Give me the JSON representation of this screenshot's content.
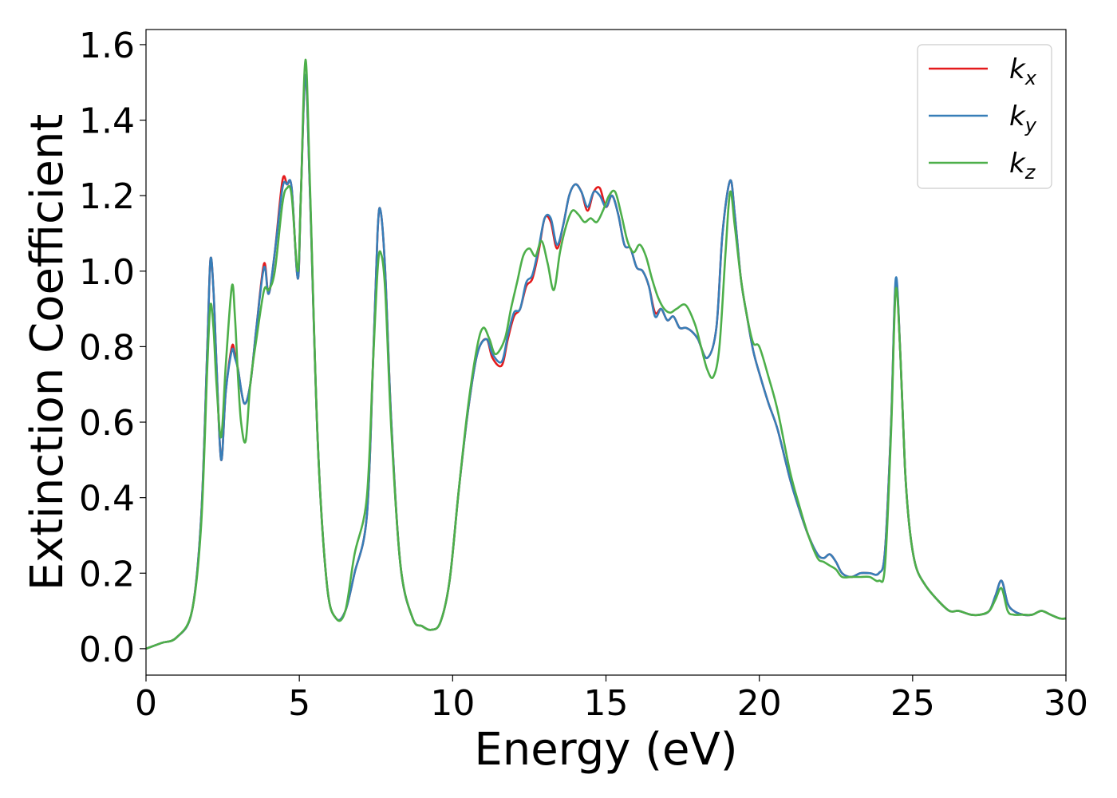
{
  "chart_data": {
    "type": "line",
    "xlabel": "Energy (eV)",
    "ylabel": "Extinction Coefficient",
    "xlim": [
      0,
      30
    ],
    "ylim": [
      -0.07,
      1.64
    ],
    "xticks": [
      0,
      5,
      10,
      15,
      20,
      25,
      30
    ],
    "xtick_labels": [
      "0",
      "5",
      "10",
      "15",
      "20",
      "25",
      "30"
    ],
    "yticks": [
      0.0,
      0.2,
      0.4,
      0.6,
      0.8,
      1.0,
      1.2,
      1.4,
      1.6
    ],
    "ytick_labels": [
      "0.0",
      "0.2",
      "0.4",
      "0.6",
      "0.8",
      "1.0",
      "1.2",
      "1.4",
      "1.6"
    ],
    "grid": false,
    "legend_position": "top-right",
    "series": [
      {
        "name": "k",
        "subscript": "x",
        "color": "#e41a1c",
        "x": [
          0,
          0.5,
          1.0,
          1.5,
          1.8,
          2.0,
          2.1,
          2.2,
          2.3,
          2.45,
          2.6,
          2.8,
          2.9,
          3.0,
          3.2,
          3.4,
          3.6,
          3.85,
          4.0,
          4.2,
          4.45,
          4.6,
          4.75,
          4.95,
          5.05,
          5.2,
          5.35,
          5.6,
          5.9,
          6.2,
          6.5,
          6.8,
          7.2,
          7.4,
          7.55,
          7.65,
          7.8,
          8.0,
          8.3,
          8.7,
          9.0,
          9.3,
          9.6,
          9.9,
          10.2,
          10.5,
          10.8,
          11.1,
          11.3,
          11.6,
          11.8,
          12.0,
          12.2,
          12.4,
          12.6,
          12.8,
          13.0,
          13.2,
          13.4,
          13.6,
          13.8,
          14.0,
          14.2,
          14.4,
          14.6,
          14.8,
          15.0,
          15.2,
          15.4,
          15.6,
          15.8,
          16.0,
          16.2,
          16.4,
          16.6,
          16.8,
          17.0,
          17.2,
          17.4,
          17.6,
          17.8,
          18.0,
          18.3,
          18.6,
          18.8,
          19.05,
          19.2,
          19.4,
          19.6,
          19.8,
          20.0,
          20.3,
          20.6,
          21.0,
          21.3,
          21.6,
          21.9,
          22.1,
          22.3,
          22.5,
          22.7,
          23.0,
          23.3,
          23.6,
          23.9,
          24.1,
          24.3,
          24.45,
          24.6,
          24.75,
          24.9,
          25.1,
          25.4,
          25.8,
          26.2,
          26.5,
          26.9,
          27.2,
          27.5,
          27.7,
          27.9,
          28.1,
          28.3,
          28.6,
          28.9,
          29.2,
          29.5,
          29.8,
          30.0
        ],
        "y": [
          0.0,
          0.015,
          0.03,
          0.1,
          0.35,
          0.8,
          1.03,
          0.95,
          0.75,
          0.5,
          0.68,
          0.8,
          0.78,
          0.74,
          0.65,
          0.7,
          0.85,
          1.02,
          0.94,
          1.05,
          1.24,
          1.23,
          1.22,
          0.98,
          1.2,
          1.52,
          1.2,
          0.55,
          0.17,
          0.08,
          0.1,
          0.2,
          0.35,
          0.75,
          1.1,
          1.16,
          1.0,
          0.6,
          0.22,
          0.08,
          0.06,
          0.05,
          0.07,
          0.18,
          0.42,
          0.63,
          0.78,
          0.82,
          0.77,
          0.75,
          0.82,
          0.88,
          0.9,
          0.96,
          0.98,
          1.05,
          1.14,
          1.13,
          1.06,
          1.12,
          1.2,
          1.23,
          1.21,
          1.16,
          1.21,
          1.22,
          1.17,
          1.2,
          1.15,
          1.07,
          1.06,
          1.01,
          1.0,
          0.96,
          0.89,
          0.9,
          0.87,
          0.88,
          0.85,
          0.85,
          0.84,
          0.82,
          0.77,
          0.85,
          1.1,
          1.24,
          1.15,
          0.98,
          0.88,
          0.79,
          0.73,
          0.65,
          0.58,
          0.45,
          0.37,
          0.3,
          0.25,
          0.24,
          0.25,
          0.23,
          0.2,
          0.19,
          0.2,
          0.2,
          0.2,
          0.26,
          0.6,
          0.97,
          0.78,
          0.48,
          0.32,
          0.22,
          0.17,
          0.13,
          0.1,
          0.1,
          0.09,
          0.09,
          0.1,
          0.14,
          0.18,
          0.12,
          0.1,
          0.09,
          0.09,
          0.1,
          0.09,
          0.08,
          0.08
        ]
      },
      {
        "name": "k",
        "subscript": "y",
        "color": "#377eb8",
        "x": [
          0,
          0.5,
          1.0,
          1.5,
          1.8,
          2.0,
          2.1,
          2.2,
          2.3,
          2.45,
          2.6,
          2.8,
          2.9,
          3.0,
          3.2,
          3.4,
          3.6,
          3.85,
          4.0,
          4.2,
          4.45,
          4.6,
          4.75,
          4.95,
          5.05,
          5.2,
          5.35,
          5.6,
          5.9,
          6.2,
          6.5,
          6.8,
          7.2,
          7.4,
          7.55,
          7.65,
          7.8,
          8.0,
          8.3,
          8.7,
          9.0,
          9.3,
          9.6,
          9.9,
          10.2,
          10.5,
          10.8,
          11.1,
          11.3,
          11.6,
          11.8,
          12.0,
          12.2,
          12.4,
          12.6,
          12.8,
          13.0,
          13.2,
          13.4,
          13.6,
          13.8,
          14.0,
          14.2,
          14.4,
          14.6,
          14.8,
          15.0,
          15.2,
          15.4,
          15.6,
          15.8,
          16.0,
          16.2,
          16.4,
          16.6,
          16.8,
          17.0,
          17.2,
          17.4,
          17.6,
          17.8,
          18.0,
          18.3,
          18.6,
          18.8,
          19.05,
          19.2,
          19.4,
          19.6,
          19.8,
          20.0,
          20.3,
          20.6,
          21.0,
          21.3,
          21.6,
          21.9,
          22.1,
          22.3,
          22.5,
          22.7,
          23.0,
          23.3,
          23.6,
          23.9,
          24.1,
          24.3,
          24.45,
          24.6,
          24.75,
          24.9,
          25.1,
          25.4,
          25.8,
          26.2,
          26.5,
          26.9,
          27.2,
          27.5,
          27.7,
          27.9,
          28.1,
          28.3,
          28.6,
          28.9,
          29.2,
          29.5,
          29.8,
          30.0
        ],
        "y": [
          0.0,
          0.015,
          0.03,
          0.1,
          0.35,
          0.8,
          1.03,
          0.95,
          0.75,
          0.5,
          0.68,
          0.79,
          0.77,
          0.74,
          0.65,
          0.7,
          0.85,
          1.01,
          0.94,
          1.05,
          1.22,
          1.23,
          1.22,
          0.98,
          1.2,
          1.52,
          1.2,
          0.55,
          0.17,
          0.08,
          0.1,
          0.2,
          0.35,
          0.75,
          1.1,
          1.16,
          1.0,
          0.6,
          0.22,
          0.08,
          0.06,
          0.05,
          0.07,
          0.18,
          0.42,
          0.63,
          0.78,
          0.82,
          0.78,
          0.76,
          0.83,
          0.89,
          0.9,
          0.97,
          0.99,
          1.06,
          1.14,
          1.14,
          1.07,
          1.12,
          1.2,
          1.23,
          1.21,
          1.17,
          1.21,
          1.2,
          1.17,
          1.2,
          1.15,
          1.07,
          1.06,
          1.01,
          1.0,
          0.96,
          0.88,
          0.9,
          0.87,
          0.88,
          0.85,
          0.85,
          0.84,
          0.82,
          0.77,
          0.85,
          1.1,
          1.24,
          1.15,
          0.98,
          0.88,
          0.79,
          0.73,
          0.65,
          0.58,
          0.45,
          0.37,
          0.3,
          0.25,
          0.24,
          0.25,
          0.23,
          0.2,
          0.19,
          0.2,
          0.2,
          0.2,
          0.26,
          0.6,
          0.98,
          0.78,
          0.48,
          0.32,
          0.22,
          0.17,
          0.13,
          0.1,
          0.1,
          0.09,
          0.09,
          0.1,
          0.14,
          0.18,
          0.12,
          0.1,
          0.09,
          0.09,
          0.1,
          0.09,
          0.08,
          0.08
        ]
      },
      {
        "name": "k",
        "subscript": "z",
        "color": "#4daf4a",
        "x": [
          0,
          0.5,
          1.0,
          1.5,
          1.8,
          2.0,
          2.1,
          2.2,
          2.3,
          2.45,
          2.6,
          2.8,
          2.9,
          3.0,
          3.1,
          3.25,
          3.4,
          3.6,
          3.85,
          4.0,
          4.2,
          4.45,
          4.6,
          4.75,
          4.95,
          5.05,
          5.2,
          5.35,
          5.6,
          5.9,
          6.2,
          6.5,
          6.8,
          7.2,
          7.4,
          7.55,
          7.65,
          7.8,
          8.0,
          8.3,
          8.7,
          9.0,
          9.3,
          9.6,
          9.9,
          10.2,
          10.5,
          10.8,
          11.0,
          11.2,
          11.4,
          11.7,
          11.9,
          12.1,
          12.3,
          12.5,
          12.7,
          12.9,
          13.1,
          13.3,
          13.5,
          13.7,
          13.9,
          14.1,
          14.3,
          14.5,
          14.7,
          14.9,
          15.1,
          15.3,
          15.5,
          15.7,
          15.9,
          16.1,
          16.3,
          16.5,
          16.7,
          16.9,
          17.1,
          17.3,
          17.6,
          17.9,
          18.1,
          18.3,
          18.5,
          18.7,
          18.9,
          19.05,
          19.2,
          19.4,
          19.6,
          19.8,
          20.0,
          20.3,
          20.6,
          21.0,
          21.3,
          21.6,
          21.9,
          22.1,
          22.3,
          22.5,
          22.7,
          23.0,
          23.3,
          23.6,
          23.9,
          24.1,
          24.3,
          24.45,
          24.6,
          24.75,
          24.9,
          25.1,
          25.4,
          25.8,
          26.2,
          26.5,
          26.9,
          27.2,
          27.5,
          27.7,
          27.9,
          28.1,
          28.3,
          28.6,
          28.9,
          29.2,
          29.5,
          29.8,
          30.0
        ],
        "y": [
          0.0,
          0.015,
          0.03,
          0.1,
          0.33,
          0.75,
          0.91,
          0.85,
          0.7,
          0.56,
          0.75,
          0.96,
          0.88,
          0.72,
          0.6,
          0.55,
          0.7,
          0.82,
          0.95,
          0.95,
          1.0,
          1.18,
          1.22,
          1.2,
          1.0,
          1.2,
          1.56,
          1.22,
          0.55,
          0.17,
          0.08,
          0.1,
          0.25,
          0.4,
          0.75,
          1.0,
          1.05,
          0.95,
          0.58,
          0.22,
          0.08,
          0.06,
          0.05,
          0.07,
          0.18,
          0.42,
          0.64,
          0.8,
          0.85,
          0.82,
          0.78,
          0.82,
          0.9,
          0.97,
          1.04,
          1.06,
          1.04,
          1.08,
          1.02,
          0.95,
          1.05,
          1.12,
          1.16,
          1.15,
          1.13,
          1.14,
          1.13,
          1.16,
          1.2,
          1.21,
          1.15,
          1.08,
          1.05,
          1.07,
          1.04,
          0.98,
          0.93,
          0.9,
          0.89,
          0.9,
          0.91,
          0.86,
          0.8,
          0.74,
          0.72,
          0.8,
          1.05,
          1.21,
          1.12,
          0.98,
          0.88,
          0.81,
          0.8,
          0.72,
          0.63,
          0.47,
          0.38,
          0.3,
          0.24,
          0.23,
          0.22,
          0.21,
          0.19,
          0.19,
          0.19,
          0.19,
          0.18,
          0.22,
          0.58,
          0.95,
          0.78,
          0.48,
          0.32,
          0.22,
          0.17,
          0.13,
          0.1,
          0.1,
          0.09,
          0.09,
          0.1,
          0.13,
          0.16,
          0.1,
          0.09,
          0.09,
          0.09,
          0.1,
          0.09,
          0.08,
          0.08
        ]
      }
    ]
  }
}
